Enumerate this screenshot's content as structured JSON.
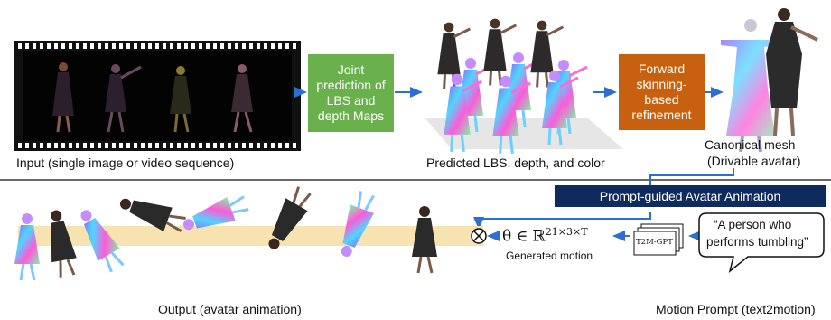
{
  "input": {
    "caption": "Input (single image or video sequence)"
  },
  "step1": {
    "label": "Joint\nprediction of\nLBS and\ndepth Maps",
    "color": "#6ab04c"
  },
  "predicted": {
    "caption": "Predicted LBS, depth, and color"
  },
  "step2": {
    "label": "Forward\nskinning-\nbased\nrefinement",
    "color": "#c8610f"
  },
  "canonical": {
    "caption_line1": "Canonical mesh",
    "caption_line2": "(Drivable avatar)"
  },
  "animation": {
    "banner": "Prompt-guided Avatar Animation",
    "banner_color": "#0f2a5c"
  },
  "output": {
    "caption": "Output (avatar animation)"
  },
  "motion": {
    "formula_prefix": "θ ∈ ℝ",
    "formula_exponent": "21×3×T",
    "caption": "Generated motion"
  },
  "t2m": {
    "label": "T2M-GPT"
  },
  "prompt": {
    "quote_line1": "“A person who",
    "quote_line2": "performs tumbling”",
    "caption": "Motion Prompt (text2motion)"
  },
  "colors": {
    "arrow": "#2a6fd1",
    "film": "#111111",
    "track": "#f7e3b0"
  }
}
